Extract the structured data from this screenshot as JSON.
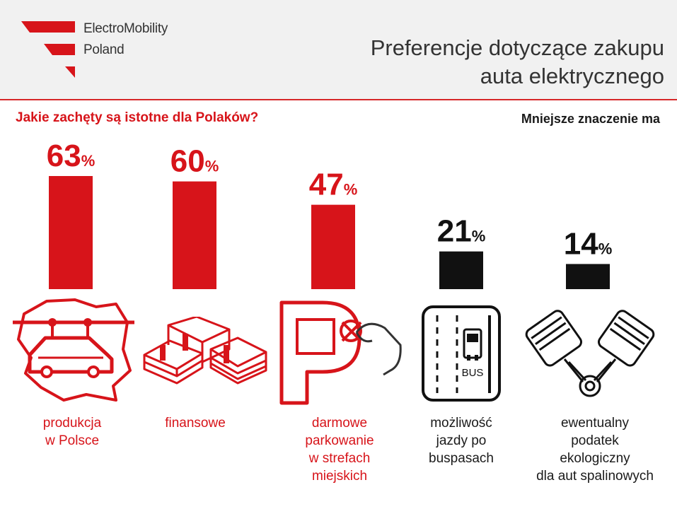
{
  "header": {
    "logo_line1": "ElectroMobility",
    "logo_line2": "Poland",
    "title_line1": "Preferencje dotyczące zakupu",
    "title_line2": "auta elektrycznego"
  },
  "subtitle_left": "Jakie zachęty są istotne dla Polaków?",
  "subtitle_right": "Mniejsze znaczenie ma",
  "colors": {
    "accent": "#d7141a",
    "dark": "#111111",
    "header_bg": "#f1f1f1"
  },
  "chart_data": {
    "type": "bar",
    "title": "",
    "xlabel": "",
    "ylabel": "",
    "ylim": [
      0,
      63
    ],
    "unit": "%",
    "categories": [
      "produkcja w Polsce",
      "finansowe",
      "darmowe parkowanie w strefach miejskich",
      "możliwość jazdy po buspasach",
      "ewentualny podatek ekologiczny dla aut spalinowych"
    ],
    "values": [
      63,
      60,
      47,
      21,
      14
    ],
    "bar_colors": [
      "#d7141a",
      "#d7141a",
      "#d7141a",
      "#111111",
      "#111111"
    ]
  },
  "labels": [
    {
      "lines": [
        "produkcja",
        "w Polsce"
      ],
      "color": "red",
      "icon": "poland-map-car-icon"
    },
    {
      "lines": [
        "finansowe"
      ],
      "color": "red",
      "icon": "money-stacks-icon"
    },
    {
      "lines": [
        "darmowe",
        "parkowanie",
        "w strefach",
        "miejskich"
      ],
      "color": "red",
      "icon": "parking-sign-icon"
    },
    {
      "lines": [
        "możliwość",
        "jazdy po",
        "buspasach"
      ],
      "color": "black",
      "icon": "bus-lane-icon"
    },
    {
      "lines": [
        "ewentualny",
        "podatek",
        "ekologiczny",
        "dla aut spalinowych"
      ],
      "color": "black",
      "icon": "engine-pistons-icon"
    }
  ],
  "bus_sign_text": "BUS"
}
